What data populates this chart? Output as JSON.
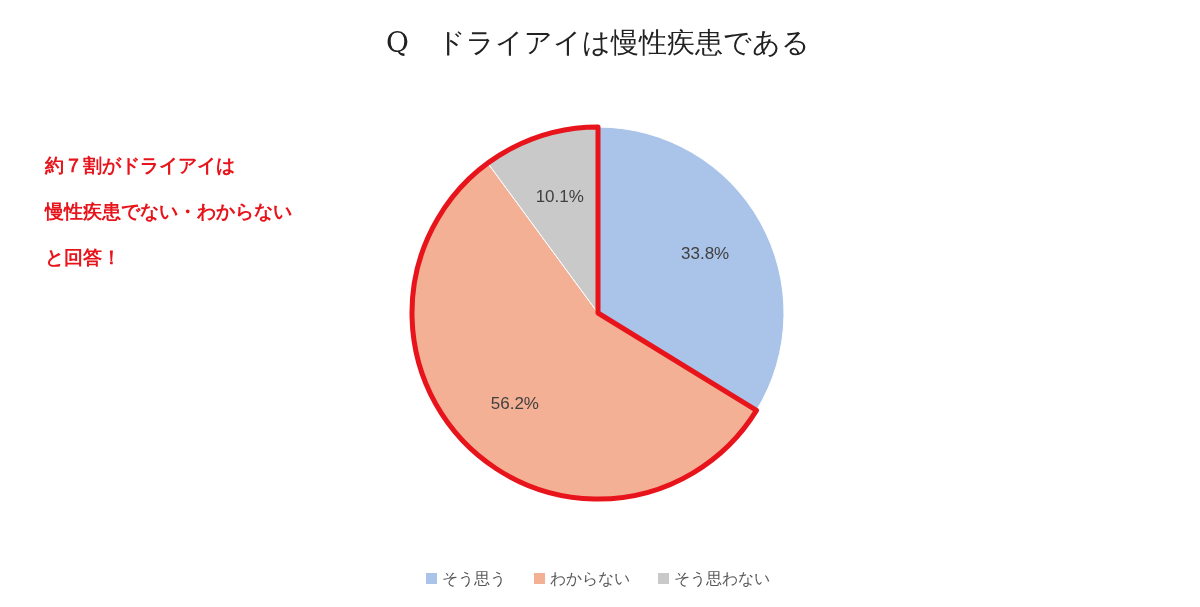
{
  "chart_data": {
    "type": "pie",
    "title": "Q　ドライアイは慢性疾患である",
    "categories": [
      "そう思う",
      "わからない",
      "そう思わない"
    ],
    "values": [
      33.8,
      56.2,
      10.1
    ],
    "colors": [
      "#a9c4e8",
      "#f4b094",
      "#c9c9c9"
    ],
    "value_labels": [
      "33.8%",
      "56.2%",
      "10.1%"
    ],
    "legend": "bottom",
    "annotations": [
      "約７割がドライアイは",
      "慢性疾患でない・わからない",
      "と回答！"
    ]
  }
}
